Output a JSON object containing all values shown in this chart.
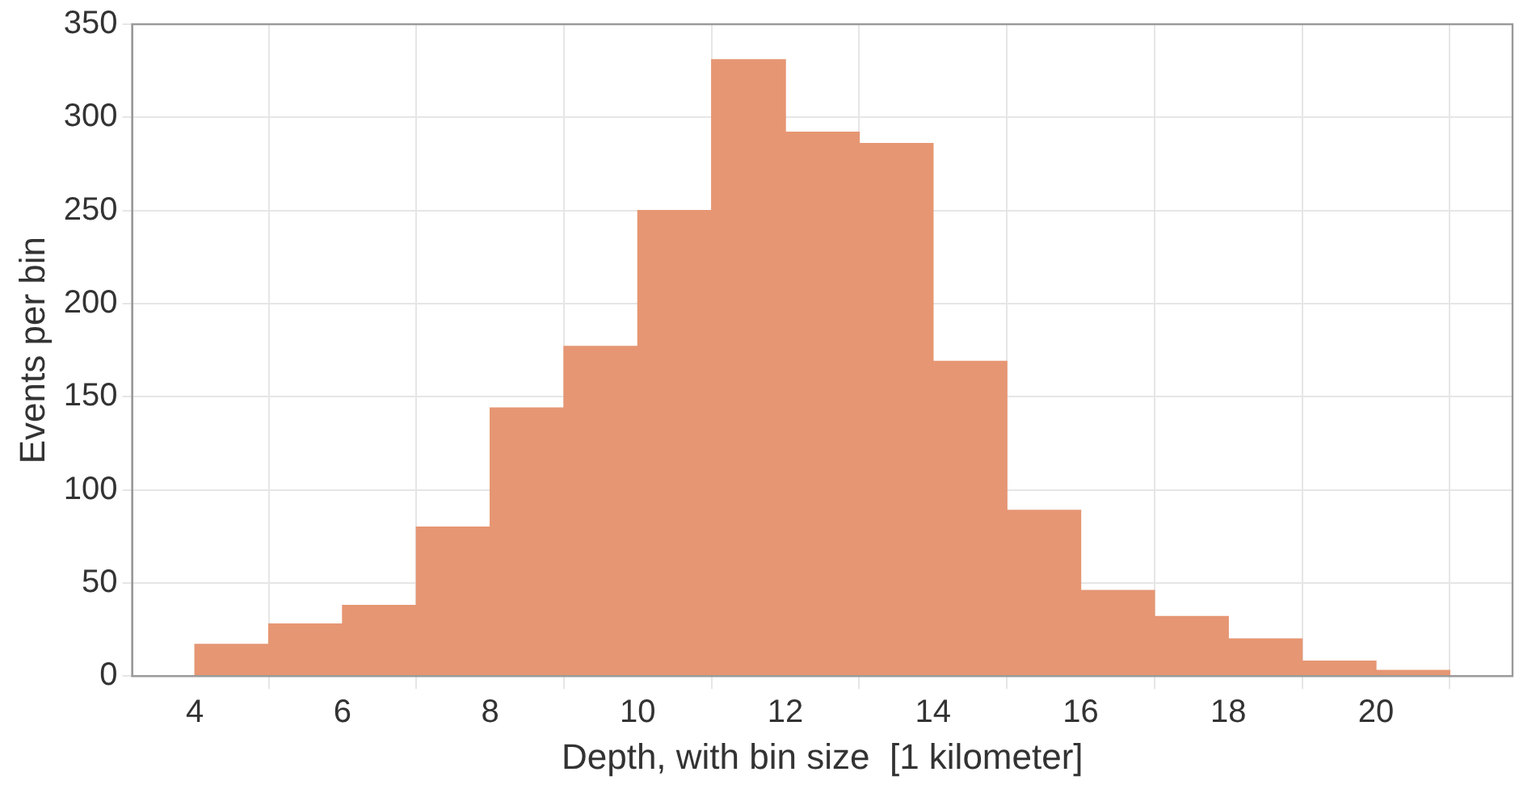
{
  "chart_data": {
    "type": "histogram",
    "xlabel": "Depth, with bin size  [1 kilometer]",
    "ylabel": "Events per bin",
    "bins": [
      4,
      5,
      6,
      7,
      8,
      9,
      10,
      11,
      12,
      13,
      14,
      15,
      16,
      17,
      18,
      19,
      20,
      21
    ],
    "values": [
      17,
      28,
      38,
      80,
      144,
      177,
      250,
      331,
      292,
      286,
      169,
      89,
      46,
      32,
      20,
      8,
      3
    ],
    "color": "#e69673",
    "xlim": [
      3.15,
      21.85
    ],
    "xticks": [
      4,
      6,
      8,
      10,
      12,
      14,
      16,
      18,
      20
    ],
    "ylim": [
      0,
      350
    ],
    "yticks": [
      0,
      50,
      100,
      150,
      200,
      250,
      300,
      350
    ],
    "grid": true
  }
}
